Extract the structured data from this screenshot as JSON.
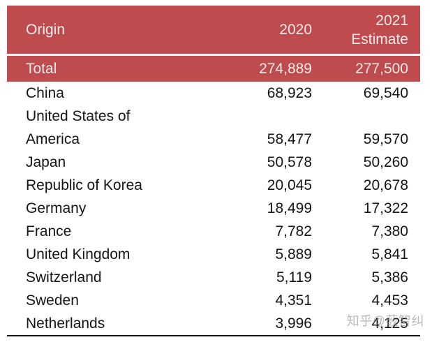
{
  "colors": {
    "table_red": "#be4b4e",
    "header_text": "#f6eae8",
    "body_text": "#151515",
    "bottom_rule": "#141414",
    "watermark_gray": "#8f8f8f"
  },
  "header": {
    "origin": "Origin",
    "y2020": "2020",
    "y2021": "2021\nEstimate"
  },
  "total": {
    "origin": "Total",
    "y2020": "274,889",
    "y2021": "277,500"
  },
  "rows": [
    {
      "origin": "China",
      "y2020": "68,923",
      "y2021": "69,540"
    },
    {
      "origin": "United States of\nAmerica",
      "y2020": "58,477",
      "y2021": "59,570"
    },
    {
      "origin": "Japan",
      "y2020": "50,578",
      "y2021": "50,260"
    },
    {
      "origin": "Republic of Korea",
      "y2020": "20,045",
      "y2021": "20,678"
    },
    {
      "origin": "Germany",
      "y2020": "18,499",
      "y2021": "17,322"
    },
    {
      "origin": "France",
      "y2020": "7,782",
      "y2021": "7,380"
    },
    {
      "origin": "United Kingdom",
      "y2020": "5,889",
      "y2021": "5,841"
    },
    {
      "origin": "Switzerland",
      "y2020": "5,119",
      "y2021": "5,386"
    },
    {
      "origin": "Sweden",
      "y2020": "4,351",
      "y2021": "4,453"
    },
    {
      "origin": "Netherlands",
      "y2020": "3,996",
      "y2021": "4,125"
    }
  ],
  "watermark": {
    "text": "知乎@薮智纠"
  }
}
